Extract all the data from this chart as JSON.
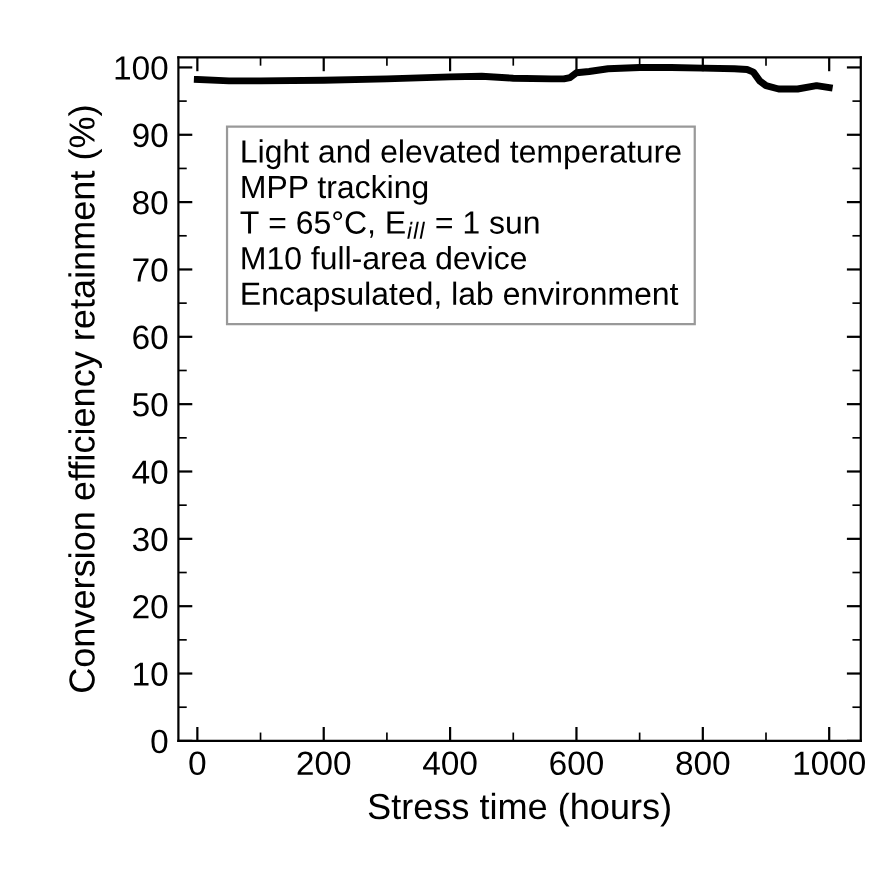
{
  "chart_data": {
    "type": "line",
    "xlabel": "Stress time (hours)",
    "ylabel": "Conversion efficiency retainment (%)",
    "x": [
      0,
      50,
      100,
      200,
      300,
      400,
      450,
      500,
      560,
      580,
      590,
      600,
      620,
      650,
      700,
      750,
      800,
      850,
      870,
      880,
      890,
      900,
      920,
      950,
      980,
      1000
    ],
    "series": [
      {
        "color": "#000000",
        "values": [
          98.2,
          98.0,
          98.0,
          98.1,
          98.3,
          98.6,
          98.7,
          98.4,
          98.3,
          98.3,
          98.5,
          99.2,
          99.4,
          99.8,
          100.0,
          100.0,
          99.9,
          99.8,
          99.7,
          99.3,
          98.0,
          97.3,
          96.8,
          96.8,
          97.3,
          97.0
        ]
      }
    ],
    "xlim": [
      -30,
      1050
    ],
    "ylim": [
      0,
      101.5
    ],
    "xticks": [
      0,
      200,
      400,
      600,
      800,
      1000
    ],
    "yticks": [
      0,
      10,
      20,
      30,
      40,
      50,
      60,
      70,
      80,
      90,
      100
    ],
    "grid": false,
    "legend": false,
    "marker": "none",
    "line_style": "solid",
    "annotations": [
      "Light and elevated temperature\nMPP tracking\nT = 65°C, E$_{ill}$ = 1 sun\nM10 full-area device\nEncapsulated, lab environment"
    ]
  }
}
